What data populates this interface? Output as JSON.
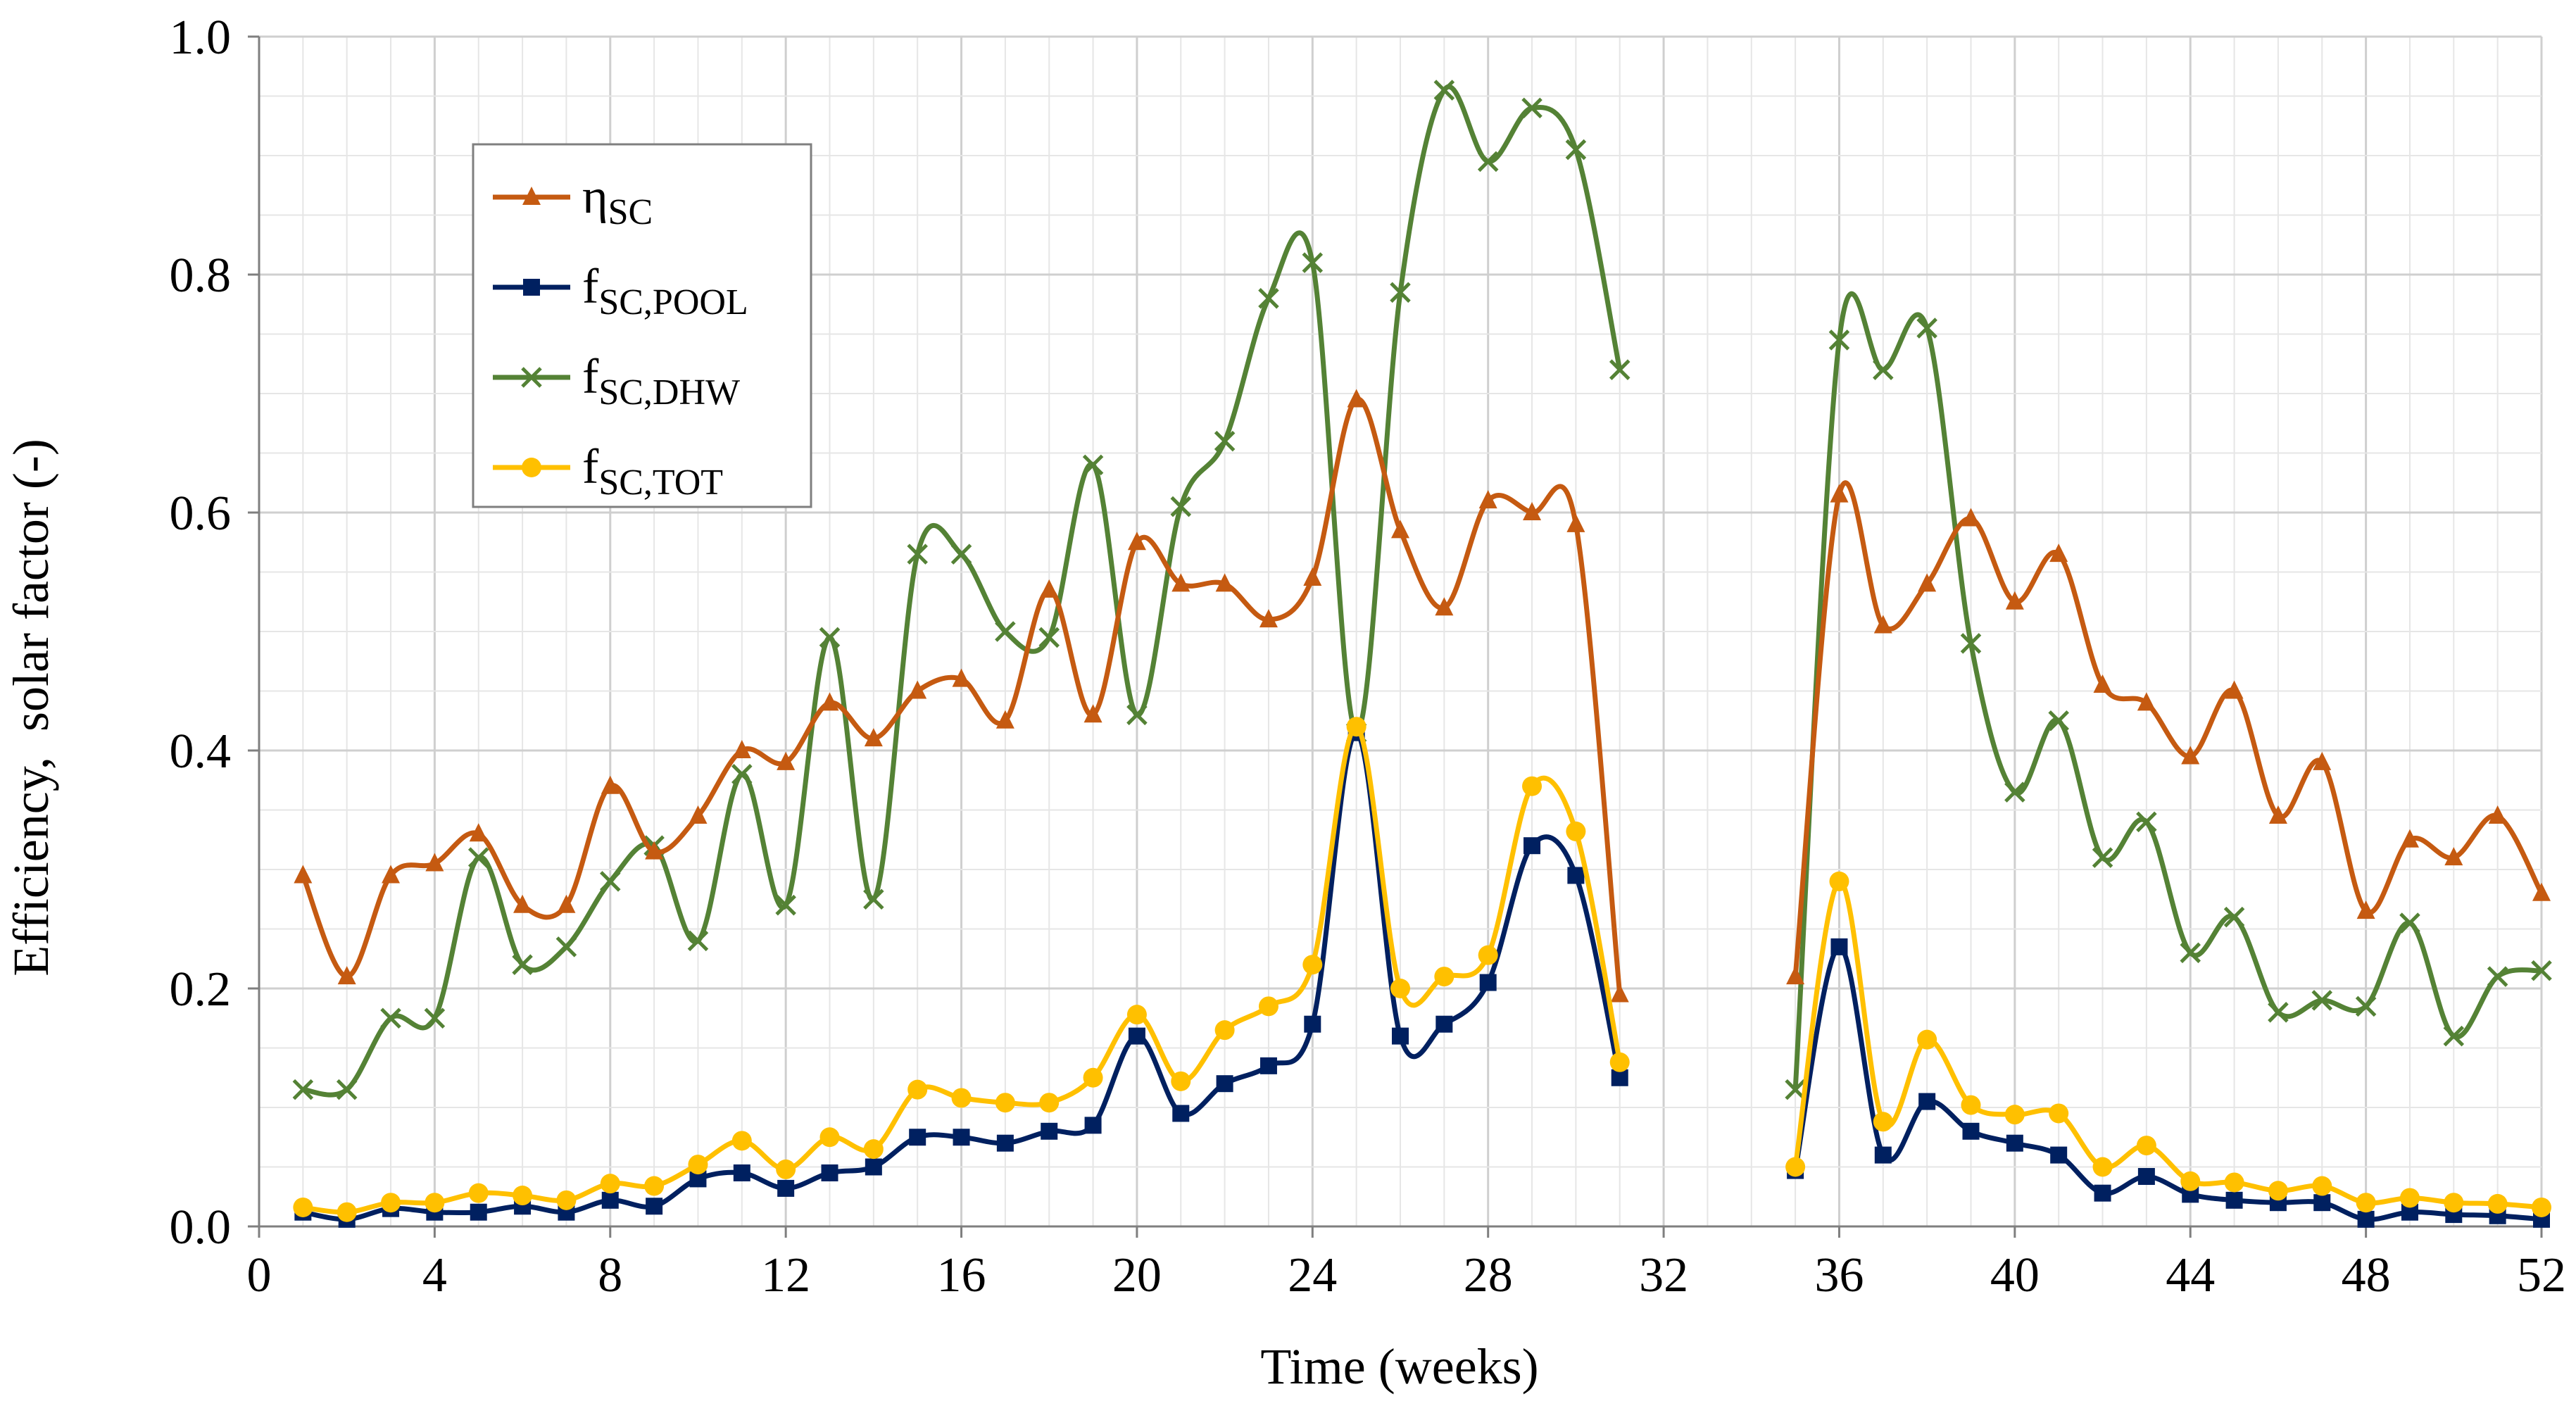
{
  "chart_data": {
    "type": "line",
    "title": "",
    "xlabel": "Time (weeks)",
    "ylabel": "Efficiency,  solar factor (-)",
    "xlim": [
      0,
      52
    ],
    "ylim": [
      0,
      1.0
    ],
    "xticks": [
      0,
      4,
      8,
      12,
      16,
      20,
      24,
      28,
      32,
      36,
      40,
      44,
      48,
      52
    ],
    "yticks": [
      0.0,
      0.2,
      0.4,
      0.6,
      0.8,
      1.0
    ],
    "xtick_labels": [
      "0",
      "4",
      "8",
      "12",
      "16",
      "20",
      "24",
      "28",
      "32",
      "36",
      "40",
      "44",
      "48",
      "52"
    ],
    "ytick_labels": [
      "0.0",
      "0.2",
      "0.4",
      "0.6",
      "0.8",
      "1.0"
    ],
    "grid": "on (major and minor)",
    "legend_position": "upper-left",
    "series": [
      {
        "name": "ηSC",
        "label_main": "η",
        "label_sub": "SC",
        "color": "#C55A11",
        "marker": "triangle",
        "x": [
          1,
          2,
          3,
          4,
          5,
          6,
          7,
          8,
          9,
          10,
          11,
          12,
          13,
          14,
          15,
          16,
          17,
          18,
          19,
          20,
          21,
          22,
          23,
          24,
          25,
          26,
          27,
          28,
          29,
          30,
          31,
          null,
          35,
          36,
          37,
          38,
          39,
          40,
          41,
          42,
          43,
          44,
          45,
          46,
          47,
          48,
          49,
          50,
          51,
          52
        ],
        "values": [
          0.295,
          0.21,
          0.295,
          0.305,
          0.33,
          0.27,
          0.27,
          0.37,
          0.315,
          0.345,
          0.4,
          0.39,
          0.44,
          0.41,
          0.45,
          0.46,
          0.425,
          0.535,
          0.43,
          0.575,
          0.54,
          0.54,
          0.51,
          0.545,
          0.695,
          0.585,
          0.52,
          0.61,
          0.6,
          0.59,
          0.195,
          null,
          0.21,
          0.615,
          0.505,
          0.54,
          0.595,
          0.525,
          0.565,
          0.455,
          0.44,
          0.395,
          0.45,
          0.345,
          0.39,
          0.265,
          0.325,
          0.31,
          0.345,
          0.28
        ]
      },
      {
        "name": "fSC,POOL",
        "label_main": "f",
        "label_sub": "SC,POOL",
        "color": "#002060",
        "marker": "square",
        "x": [
          1,
          2,
          3,
          4,
          5,
          6,
          7,
          8,
          9,
          10,
          11,
          12,
          13,
          14,
          15,
          16,
          17,
          18,
          19,
          20,
          21,
          22,
          23,
          24,
          25,
          26,
          27,
          28,
          29,
          30,
          31,
          null,
          35,
          36,
          37,
          38,
          39,
          40,
          41,
          42,
          43,
          44,
          45,
          46,
          47,
          48,
          49,
          50,
          51,
          52
        ],
        "values": [
          0.012,
          0.006,
          0.015,
          0.012,
          0.012,
          0.017,
          0.012,
          0.022,
          0.017,
          0.04,
          0.045,
          0.032,
          0.045,
          0.05,
          0.075,
          0.075,
          0.07,
          0.08,
          0.085,
          0.16,
          0.095,
          0.12,
          0.135,
          0.17,
          0.415,
          0.16,
          0.17,
          0.205,
          0.32,
          0.295,
          0.125,
          null,
          0.047,
          0.235,
          0.06,
          0.105,
          0.08,
          0.07,
          0.06,
          0.028,
          0.042,
          0.027,
          0.022,
          0.02,
          0.02,
          0.006,
          0.012,
          0.01,
          0.009,
          0.006
        ]
      },
      {
        "name": "fSC,DHW",
        "label_main": "f",
        "label_sub": "SC,DHW",
        "color": "#548235",
        "marker": "x",
        "x": [
          1,
          2,
          3,
          4,
          5,
          6,
          7,
          8,
          9,
          10,
          11,
          12,
          13,
          14,
          15,
          16,
          17,
          18,
          19,
          20,
          21,
          22,
          23,
          24,
          25,
          26,
          27,
          28,
          29,
          30,
          31,
          null,
          35,
          36,
          37,
          38,
          39,
          40,
          41,
          42,
          43,
          44,
          45,
          46,
          47,
          48,
          49,
          50,
          51,
          52
        ],
        "values": [
          0.115,
          0.115,
          0.175,
          0.175,
          0.31,
          0.22,
          0.235,
          0.29,
          0.32,
          0.24,
          0.38,
          0.27,
          0.495,
          0.275,
          0.565,
          0.565,
          0.5,
          0.495,
          0.64,
          0.43,
          0.605,
          0.66,
          0.78,
          0.81,
          0.415,
          0.785,
          0.955,
          0.895,
          0.94,
          0.905,
          0.72,
          null,
          0.115,
          0.745,
          0.72,
          0.755,
          0.49,
          0.365,
          0.425,
          0.31,
          0.34,
          0.23,
          0.26,
          0.18,
          0.19,
          0.185,
          0.255,
          0.16,
          0.21,
          0.215
        ]
      },
      {
        "name": "fSC,TOT",
        "label_main": "f",
        "label_sub": "SC,TOT",
        "color": "#FFC000",
        "marker": "circle",
        "x": [
          1,
          2,
          3,
          4,
          5,
          6,
          7,
          8,
          9,
          10,
          11,
          12,
          13,
          14,
          15,
          16,
          17,
          18,
          19,
          20,
          21,
          22,
          23,
          24,
          25,
          26,
          27,
          28,
          29,
          30,
          31,
          null,
          35,
          36,
          37,
          38,
          39,
          40,
          41,
          42,
          43,
          44,
          45,
          46,
          47,
          48,
          49,
          50,
          51,
          52
        ],
        "values": [
          0.016,
          0.012,
          0.02,
          0.02,
          0.028,
          0.026,
          0.022,
          0.036,
          0.034,
          0.052,
          0.072,
          0.048,
          0.075,
          0.065,
          0.115,
          0.108,
          0.104,
          0.104,
          0.125,
          0.178,
          0.122,
          0.165,
          0.185,
          0.22,
          0.42,
          0.2,
          0.21,
          0.228,
          0.37,
          0.332,
          0.138,
          null,
          0.05,
          0.29,
          0.088,
          0.157,
          0.102,
          0.094,
          0.095,
          0.05,
          0.068,
          0.038,
          0.037,
          0.03,
          0.034,
          0.02,
          0.024,
          0.02,
          0.019,
          0.016
        ]
      }
    ]
  }
}
